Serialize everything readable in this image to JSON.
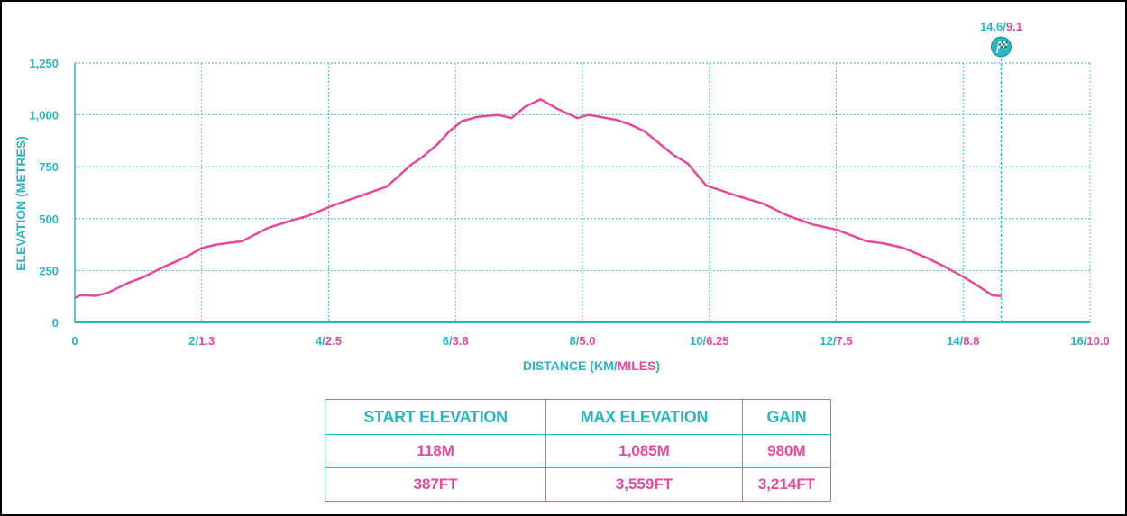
{
  "chart_data": {
    "type": "line",
    "title": "",
    "xlabel": {
      "text": "DISTANCE (",
      "km": "KM",
      "sep": "/",
      "miles": "MILES",
      "close": ")"
    },
    "ylabel": "ELEVATION (METRES)",
    "xlim": [
      0,
      16
    ],
    "ylim": [
      0,
      1250
    ],
    "grid": true,
    "y_ticks": [
      {
        "value": 0,
        "label": "0"
      },
      {
        "value": 250,
        "label": "250"
      },
      {
        "value": 500,
        "label": "500"
      },
      {
        "value": 750,
        "label": "750"
      },
      {
        "value": 1000,
        "label": "1,000"
      },
      {
        "value": 1250,
        "label": "1,250"
      }
    ],
    "x_ticks": [
      {
        "value": 0,
        "km": "0",
        "miles": ""
      },
      {
        "value": 2,
        "km": "2",
        "miles": "1.3"
      },
      {
        "value": 4,
        "km": "4",
        "miles": "2.5"
      },
      {
        "value": 6,
        "km": "6",
        "miles": "3.8"
      },
      {
        "value": 8,
        "km": "8",
        "miles": "5.0"
      },
      {
        "value": 10,
        "km": "10",
        "miles": "6.25"
      },
      {
        "value": 12,
        "km": "12",
        "miles": "7.5"
      },
      {
        "value": 14,
        "km": "14",
        "miles": "8.8"
      },
      {
        "value": 16,
        "km": "16",
        "miles": "10.0"
      }
    ],
    "finish": {
      "x": 14.6,
      "km": "14.6",
      "miles": "9.1",
      "icon": "checkered-flag-icon"
    },
    "colors": {
      "axis": "#29b6c3",
      "grid": "#29b6c3",
      "line": "#e8489b",
      "km": "#29b6c3",
      "miles": "#e8489b"
    },
    "series": [
      {
        "x": [
          0,
          0.1,
          0.33,
          0.52,
          0.85,
          1.08,
          1.42,
          1.77,
          2.0,
          2.23,
          2.64,
          3.04,
          3.45,
          3.67,
          4.08,
          4.46,
          4.92,
          5.3,
          5.47,
          5.72,
          5.9,
          6.1,
          6.34,
          6.67,
          6.88,
          7.1,
          7.34,
          7.6,
          7.92,
          8.1,
          8.38,
          8.55,
          8.78,
          8.98,
          9.22,
          9.42,
          9.66,
          9.95,
          10.44,
          10.85,
          11.23,
          11.63,
          12.0,
          12.47,
          12.73,
          13.05,
          13.4,
          13.7,
          14.0,
          14.24,
          14.46,
          14.6
        ],
        "y": [
          118,
          132,
          128,
          143,
          192,
          218,
          270,
          318,
          358,
          375,
          392,
          455,
          495,
          513,
          565,
          605,
          655,
          760,
          795,
          860,
          920,
          970,
          990,
          1000,
          985,
          1040,
          1075,
          1030,
          985,
          1000,
          985,
          975,
          950,
          920,
          860,
          810,
          765,
          660,
          610,
          572,
          515,
          472,
          448,
          392,
          382,
          360,
          315,
          270,
          220,
          175,
          130,
          127
        ]
      }
    ]
  },
  "stats": {
    "headers": [
      "START ELEVATION",
      "MAX ELEVATION",
      "GAIN"
    ],
    "metres": [
      "118M",
      "1,085M",
      "980M"
    ],
    "feet": [
      "387FT",
      "3,559FT",
      "3,214FT"
    ]
  }
}
